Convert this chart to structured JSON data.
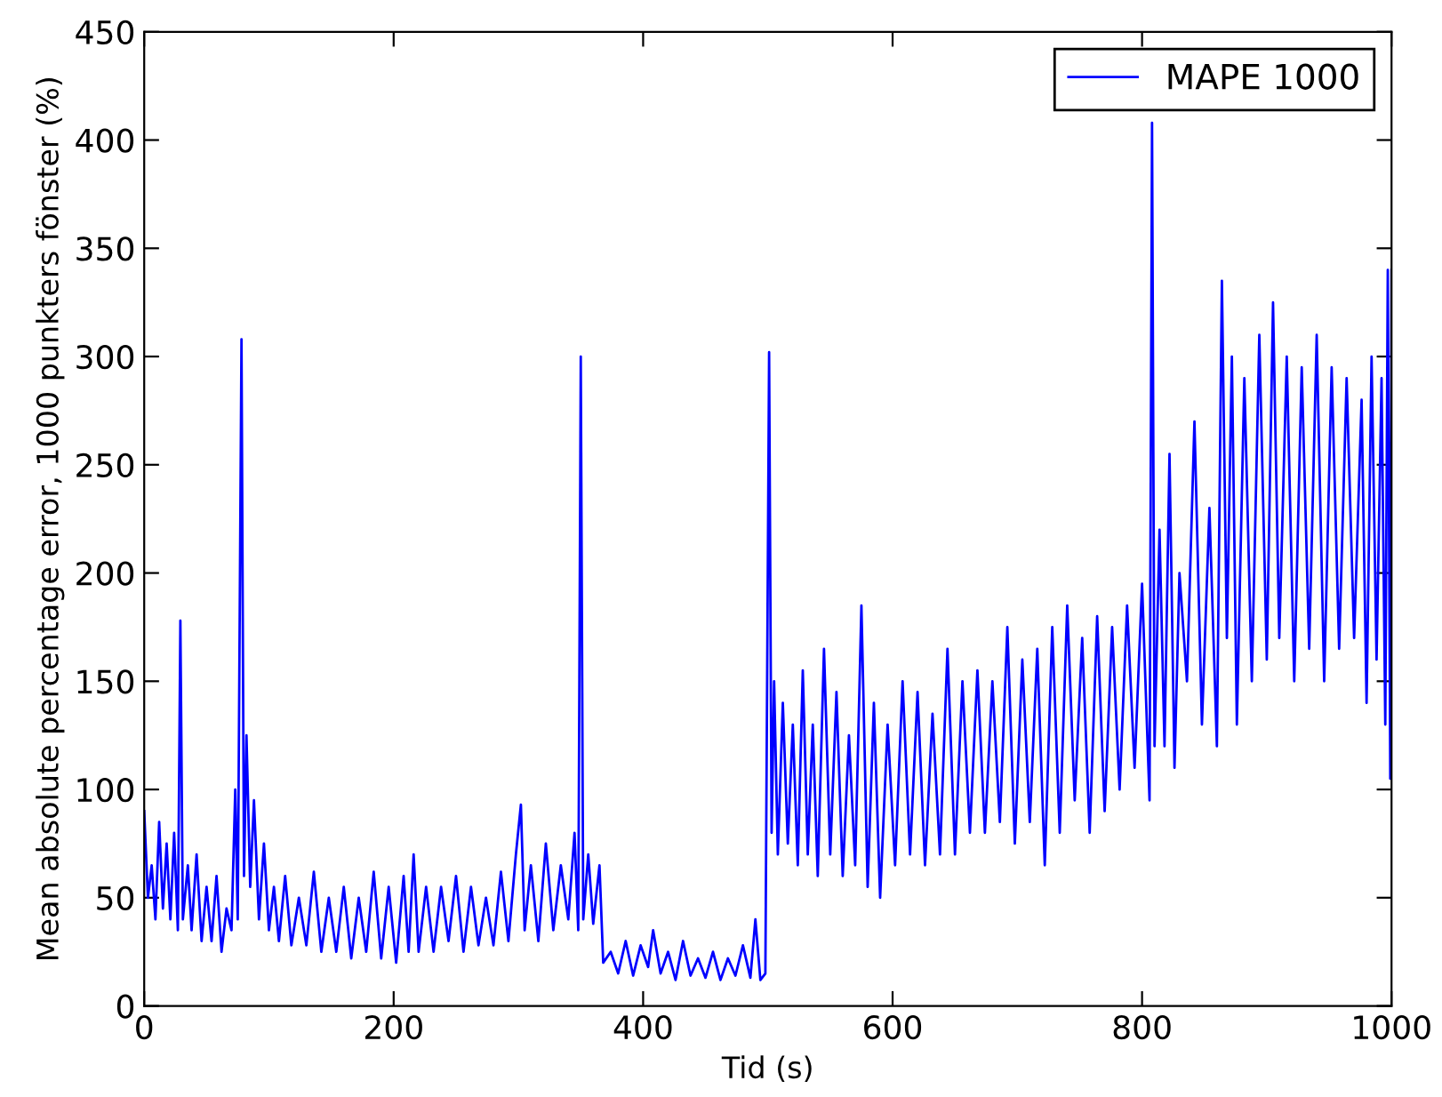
{
  "chart_data": {
    "type": "line",
    "xlabel": "Tid (s)",
    "ylabel": "Mean absolute percentage error, 1000 punkters fönster (%)",
    "xlim": [
      0,
      1000
    ],
    "xticks": [
      0,
      200,
      400,
      600,
      800,
      1000
    ],
    "ylim": [
      0,
      450
    ],
    "yticks": [
      0,
      50,
      100,
      150,
      200,
      250,
      300,
      350,
      400,
      450
    ],
    "grid": false,
    "legend": "top right",
    "marker": "none",
    "line_style": "solid",
    "series": [
      {
        "name": "MAPE 1000",
        "color": "#0000ff",
        "x": [
          0,
          3,
          6,
          9,
          12,
          15,
          18,
          21,
          24,
          27,
          29,
          31,
          35,
          38,
          42,
          46,
          50,
          54,
          58,
          62,
          66,
          70,
          73,
          75,
          78,
          80,
          82,
          85,
          88,
          92,
          96,
          100,
          104,
          108,
          113,
          118,
          124,
          130,
          136,
          142,
          148,
          154,
          160,
          166,
          172,
          178,
          184,
          190,
          196,
          202,
          208,
          212,
          216,
          220,
          226,
          232,
          238,
          244,
          250,
          256,
          262,
          268,
          274,
          280,
          286,
          292,
          298,
          302,
          305,
          310,
          316,
          322,
          328,
          334,
          340,
          345,
          348,
          350,
          352,
          356,
          360,
          365,
          368,
          374,
          380,
          386,
          392,
          398,
          404,
          408,
          414,
          420,
          426,
          432,
          438,
          444,
          450,
          456,
          462,
          468,
          474,
          480,
          486,
          490,
          494,
          498,
          501,
          503,
          505,
          508,
          512,
          516,
          520,
          524,
          528,
          532,
          536,
          540,
          545,
          550,
          555,
          560,
          565,
          570,
          575,
          580,
          585,
          590,
          596,
          602,
          608,
          614,
          620,
          626,
          632,
          638,
          644,
          650,
          656,
          662,
          668,
          674,
          680,
          686,
          692,
          698,
          704,
          710,
          716,
          722,
          728,
          734,
          740,
          746,
          752,
          758,
          764,
          770,
          776,
          782,
          788,
          794,
          800,
          806,
          808,
          810,
          814,
          818,
          822,
          826,
          830,
          836,
          842,
          848,
          854,
          860,
          864,
          868,
          872,
          876,
          882,
          888,
          894,
          900,
          905,
          910,
          916,
          922,
          928,
          934,
          940,
          946,
          952,
          958,
          964,
          970,
          976,
          980,
          984,
          988,
          992,
          995,
          997,
          999,
          1000
        ],
        "values": [
          90,
          50,
          65,
          40,
          85,
          45,
          75,
          40,
          80,
          35,
          178,
          40,
          65,
          35,
          70,
          30,
          55,
          30,
          60,
          25,
          45,
          35,
          100,
          40,
          308,
          60,
          125,
          55,
          95,
          40,
          75,
          35,
          55,
          30,
          60,
          28,
          50,
          28,
          62,
          25,
          50,
          25,
          55,
          22,
          50,
          25,
          62,
          22,
          55,
          20,
          60,
          25,
          70,
          25,
          55,
          25,
          55,
          30,
          60,
          25,
          55,
          28,
          50,
          28,
          62,
          30,
          70,
          93,
          35,
          65,
          30,
          75,
          35,
          65,
          40,
          80,
          35,
          300,
          40,
          70,
          38,
          65,
          20,
          25,
          15,
          30,
          14,
          28,
          18,
          35,
          15,
          25,
          12,
          30,
          14,
          22,
          13,
          25,
          12,
          22,
          14,
          28,
          13,
          40,
          12,
          15,
          302,
          80,
          150,
          70,
          140,
          75,
          130,
          65,
          155,
          70,
          130,
          60,
          165,
          70,
          145,
          60,
          125,
          65,
          185,
          55,
          140,
          50,
          130,
          65,
          150,
          70,
          145,
          65,
          135,
          70,
          165,
          70,
          150,
          80,
          155,
          80,
          150,
          85,
          175,
          75,
          160,
          85,
          165,
          65,
          175,
          80,
          185,
          95,
          170,
          80,
          180,
          90,
          175,
          100,
          185,
          110,
          195,
          95,
          408,
          120,
          220,
          120,
          255,
          110,
          200,
          150,
          270,
          130,
          230,
          120,
          335,
          170,
          300,
          130,
          290,
          150,
          310,
          160,
          325,
          170,
          300,
          150,
          295,
          165,
          310,
          150,
          295,
          165,
          290,
          170,
          280,
          140,
          300,
          160,
          290,
          130,
          340,
          105,
          340
        ]
      }
    ]
  }
}
